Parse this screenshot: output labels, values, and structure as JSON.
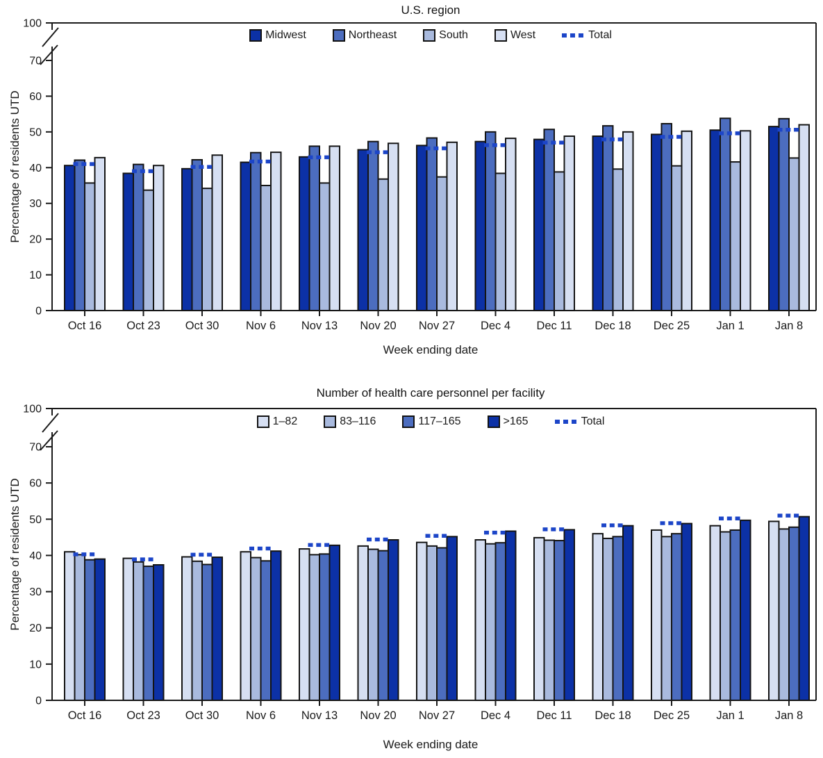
{
  "figure": {
    "background": "#ffffff",
    "axis_color": "#1a1a1a",
    "bar_border_color": "#141414"
  },
  "chart_data": [
    {
      "type": "bar",
      "title": "U.S. region",
      "ylabel": "Percentage of residents UTD",
      "xlabel": "Week ending date",
      "legend_position": "top-center",
      "grid": false,
      "axis_break_between": [
        70,
        100
      ],
      "y_ticks": [
        0,
        10,
        20,
        30,
        40,
        50,
        60,
        70,
        100
      ],
      "ylim": [
        0,
        100
      ],
      "categories": [
        "Oct 16",
        "Oct 23",
        "Oct 30",
        "Nov 6",
        "Nov 13",
        "Nov 20",
        "Nov 27",
        "Dec 4",
        "Dec 11",
        "Dec 18",
        "Dec 25",
        "Jan 1",
        "Jan 8"
      ],
      "series": [
        {
          "name": "Midwest",
          "color": "#0c31a6",
          "values": [
            40.6,
            38.4,
            39.7,
            41.5,
            43.0,
            45.0,
            46.2,
            47.3,
            47.9,
            48.8,
            49.3,
            50.5,
            51.5
          ]
        },
        {
          "name": "Northeast",
          "color": "#4c6dbf",
          "values": [
            42.1,
            40.9,
            42.2,
            44.2,
            46.0,
            47.3,
            48.3,
            50.0,
            50.7,
            51.7,
            52.3,
            53.8,
            53.7
          ]
        },
        {
          "name": "South",
          "color": "#a9bade",
          "values": [
            35.7,
            33.7,
            34.2,
            35.0,
            35.7,
            36.8,
            37.4,
            38.4,
            38.8,
            39.6,
            40.5,
            41.6,
            42.7
          ]
        },
        {
          "name": "West",
          "color": "#d6dff2",
          "values": [
            42.8,
            40.6,
            43.5,
            44.3,
            46.0,
            46.8,
            47.1,
            48.2,
            48.8,
            50.0,
            50.2,
            50.3,
            52.0
          ]
        }
      ],
      "total_line": {
        "name": "Total",
        "style": "dotted",
        "color": "#1c45c8",
        "values": [
          41.0,
          39.0,
          40.2,
          41.7,
          42.9,
          44.3,
          45.4,
          46.3,
          47.0,
          47.9,
          48.6,
          49.6,
          50.6
        ]
      }
    },
    {
      "type": "bar",
      "title": "Number of health care personnel per facility",
      "ylabel": "Percentage of residents UTD",
      "xlabel": "Week ending date",
      "legend_position": "top-center",
      "grid": false,
      "axis_break_between": [
        70,
        100
      ],
      "y_ticks": [
        0,
        10,
        20,
        30,
        40,
        50,
        60,
        70,
        100
      ],
      "ylim": [
        0,
        100
      ],
      "categories": [
        "Oct 16",
        "Oct 23",
        "Oct 30",
        "Nov 6",
        "Nov 13",
        "Nov 20",
        "Nov 27",
        "Dec 4",
        "Dec 11",
        "Dec 18",
        "Dec 25",
        "Jan 1",
        "Jan 8"
      ],
      "series": [
        {
          "name": "1–82",
          "color": "#d6dff2",
          "values": [
            41.0,
            39.2,
            39.6,
            41.0,
            41.8,
            42.6,
            43.6,
            44.3,
            44.9,
            46.0,
            47.0,
            48.2,
            49.4
          ]
        },
        {
          "name": "83–116",
          "color": "#a9bade",
          "values": [
            40.2,
            38.2,
            38.4,
            39.4,
            40.2,
            41.7,
            42.6,
            43.2,
            44.2,
            44.7,
            45.2,
            46.5,
            47.3
          ]
        },
        {
          "name": "117–165",
          "color": "#4c6dbf",
          "values": [
            38.8,
            37.0,
            37.5,
            38.5,
            40.4,
            41.3,
            42.1,
            43.5,
            44.1,
            45.2,
            46.0,
            47.0,
            47.8
          ]
        },
        {
          "name": ">165",
          "color": "#0c31a6",
          "values": [
            39.0,
            37.4,
            39.5,
            41.2,
            42.8,
            44.3,
            45.2,
            46.7,
            47.1,
            48.2,
            48.8,
            49.7,
            50.7
          ]
        }
      ],
      "total_line": {
        "name": "Total",
        "style": "dotted",
        "color": "#1c45c8",
        "values": [
          40.3,
          38.9,
          40.2,
          41.9,
          42.9,
          44.4,
          45.4,
          46.3,
          47.2,
          48.3,
          48.9,
          50.2,
          51.0
        ]
      }
    }
  ]
}
